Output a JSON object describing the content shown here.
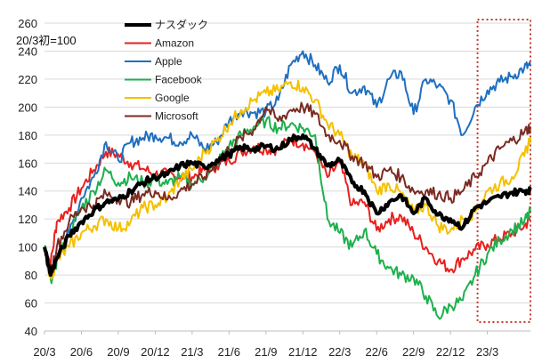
{
  "chart_data": {
    "type": "line",
    "annotation": "20/3初=100",
    "ylim": [
      40,
      260
    ],
    "yticks": [
      40,
      60,
      80,
      100,
      120,
      140,
      160,
      180,
      200,
      220,
      240,
      260
    ],
    "x_tick_labels": [
      "20/3",
      "20/6",
      "20/9",
      "20/12",
      "21/3",
      "21/6",
      "21/9",
      "21/12",
      "22/3",
      "22/6",
      "22/9",
      "22/12",
      "23/3"
    ],
    "x_tick_months": [
      0,
      3,
      6,
      9,
      12,
      15,
      18,
      21,
      24,
      27,
      30,
      33,
      36
    ],
    "xlim_months": [
      0,
      39.5
    ],
    "highlight_months": [
      35.2,
      39.7
    ],
    "legend_position": "upper-left",
    "series": [
      {
        "name": "ナスダック",
        "color": "#000000",
        "width": 4,
        "x": [
          0,
          0.5,
          1,
          2,
          3,
          4,
          5,
          6,
          7,
          8,
          9,
          10,
          11,
          12,
          13,
          14,
          15,
          16,
          17,
          18,
          19,
          20,
          21,
          22,
          23,
          24,
          25,
          26,
          27,
          28,
          29,
          30,
          31,
          32,
          33,
          34,
          35,
          36,
          37,
          38,
          39,
          39.5
        ],
        "y": [
          100,
          80,
          92,
          108,
          118,
          126,
          132,
          134,
          140,
          146,
          150,
          152,
          158,
          160,
          157,
          162,
          166,
          171,
          170,
          172,
          170,
          177,
          180,
          170,
          158,
          162,
          146,
          140,
          124,
          132,
          137,
          124,
          135,
          123,
          120,
          114,
          128,
          132,
          136,
          139,
          140,
          141
        ]
      },
      {
        "name": "Amazon",
        "color": "#e8201e",
        "width": 2,
        "x": [
          0,
          0.5,
          1,
          2,
          3,
          4,
          5,
          6,
          7,
          8,
          9,
          10,
          11,
          12,
          13,
          14,
          15,
          16,
          17,
          18,
          19,
          20,
          21,
          22,
          23,
          24,
          25,
          26,
          27,
          28,
          29,
          30,
          31,
          32,
          33,
          34,
          35,
          36,
          37,
          38,
          39,
          39.5
        ],
        "y": [
          100,
          88,
          118,
          128,
          142,
          155,
          168,
          166,
          160,
          156,
          152,
          152,
          150,
          150,
          155,
          158,
          162,
          168,
          172,
          170,
          170,
          177,
          174,
          168,
          150,
          160,
          130,
          132,
          112,
          120,
          122,
          110,
          100,
          90,
          84,
          92,
          98,
          102,
          106,
          110,
          115,
          120
        ]
      },
      {
        "name": "Apple",
        "color": "#1f6fc0",
        "width": 2,
        "x": [
          0,
          0.5,
          1,
          2,
          3,
          4,
          5,
          6,
          7,
          8,
          9,
          10,
          11,
          12,
          13,
          14,
          15,
          16,
          17,
          18,
          19,
          20,
          21,
          22,
          23,
          24,
          25,
          26,
          27,
          28,
          29,
          30,
          31,
          32,
          33,
          34,
          35,
          36,
          37,
          38,
          39,
          39.5
        ],
        "y": [
          100,
          78,
          95,
          110,
          135,
          150,
          175,
          162,
          175,
          178,
          180,
          178,
          175,
          180,
          170,
          175,
          190,
          198,
          196,
          197,
          205,
          230,
          240,
          230,
          218,
          230,
          210,
          215,
          200,
          220,
          225,
          195,
          220,
          215,
          205,
          180,
          200,
          212,
          218,
          222,
          228,
          230
        ]
      },
      {
        "name": "Facebook",
        "color": "#1eb04e",
        "width": 2,
        "x": [
          0,
          0.5,
          1,
          2,
          3,
          4,
          5,
          6,
          7,
          8,
          9,
          10,
          11,
          12,
          13,
          14,
          15,
          16,
          17,
          18,
          19,
          20,
          21,
          22,
          23,
          24,
          25,
          26,
          27,
          28,
          29,
          30,
          31,
          32,
          33,
          34,
          35,
          36,
          37,
          38,
          39,
          39.5
        ],
        "y": [
          100,
          77,
          90,
          108,
          128,
          140,
          155,
          146,
          150,
          146,
          148,
          145,
          150,
          145,
          150,
          160,
          172,
          180,
          186,
          190,
          185,
          188,
          185,
          180,
          120,
          110,
          100,
          112,
          95,
          85,
          80,
          78,
          65,
          50,
          58,
          62,
          80,
          95,
          105,
          112,
          118,
          125
        ]
      },
      {
        "name": "Google",
        "color": "#f5c000",
        "width": 2,
        "x": [
          0,
          0.5,
          1,
          2,
          3,
          4,
          5,
          6,
          7,
          8,
          9,
          10,
          11,
          12,
          13,
          14,
          15,
          16,
          17,
          18,
          19,
          20,
          21,
          22,
          23,
          24,
          25,
          26,
          27,
          28,
          29,
          30,
          31,
          32,
          33,
          34,
          35,
          36,
          37,
          38,
          39,
          39.5
        ],
        "y": [
          100,
          78,
          90,
          100,
          110,
          115,
          120,
          113,
          118,
          128,
          130,
          135,
          148,
          155,
          168,
          176,
          188,
          198,
          205,
          210,
          212,
          218,
          214,
          205,
          188,
          180,
          165,
          160,
          140,
          145,
          138,
          125,
          130,
          115,
          112,
          120,
          125,
          140,
          145,
          150,
          165,
          178
        ]
      },
      {
        "name": "Microsoft",
        "color": "#7b2b22",
        "width": 2,
        "x": [
          0,
          0.5,
          1,
          2,
          3,
          4,
          5,
          6,
          7,
          8,
          9,
          10,
          11,
          12,
          13,
          14,
          15,
          16,
          17,
          18,
          19,
          20,
          21,
          22,
          23,
          24,
          25,
          26,
          27,
          28,
          29,
          30,
          31,
          32,
          33,
          34,
          35,
          36,
          37,
          38,
          39,
          39.5
        ],
        "y": [
          100,
          82,
          100,
          118,
          128,
          130,
          138,
          135,
          132,
          138,
          140,
          134,
          140,
          145,
          150,
          160,
          170,
          178,
          184,
          200,
          190,
          198,
          200,
          195,
          180,
          176,
          165,
          160,
          150,
          155,
          150,
          140,
          140,
          138,
          135,
          140,
          150,
          160,
          170,
          176,
          182,
          186
        ]
      }
    ]
  }
}
